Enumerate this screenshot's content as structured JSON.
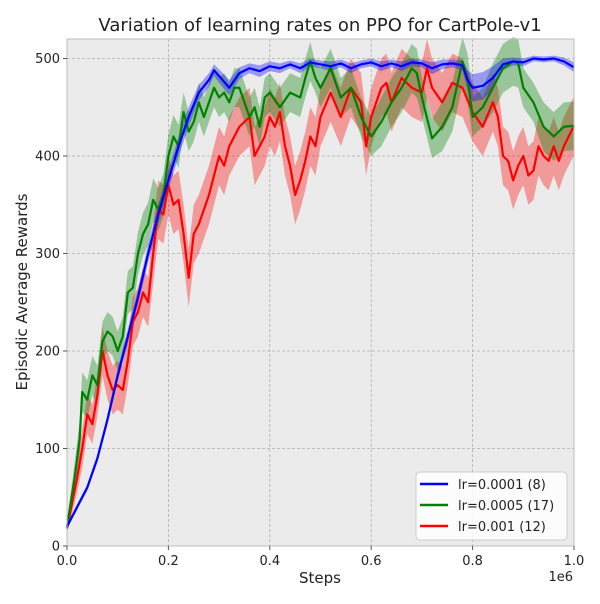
{
  "chart_data": {
    "type": "line",
    "title": "Variation of learning rates on PPO for CartPole-v1",
    "xlabel": "Steps",
    "ylabel": "Episodic Average Rewards",
    "x_offset_label": "1e6",
    "xlim": [
      0,
      1.0
    ],
    "ylim": [
      0,
      520
    ],
    "xticks": [
      0.0,
      0.2,
      0.4,
      0.6,
      0.8,
      1.0
    ],
    "xtick_labels": [
      "0.0",
      "0.2",
      "0.4",
      "0.6",
      "0.8",
      "1.0"
    ],
    "yticks": [
      0,
      100,
      200,
      300,
      400,
      500
    ],
    "ytick_labels": [
      "0",
      "100",
      "200",
      "300",
      "400",
      "500"
    ],
    "grid": true,
    "legend_position": "bottom-right",
    "background": "#ebebeb",
    "series": [
      {
        "name": "lr=0.0001 (8)",
        "color": "#0000ff",
        "band_color": "#0000ff",
        "points": [
          [
            0.0,
            20
          ],
          [
            0.02,
            40
          ],
          [
            0.04,
            60
          ],
          [
            0.06,
            90
          ],
          [
            0.08,
            130
          ],
          [
            0.1,
            175
          ],
          [
            0.12,
            215
          ],
          [
            0.14,
            255
          ],
          [
            0.16,
            300
          ],
          [
            0.18,
            340
          ],
          [
            0.2,
            375
          ],
          [
            0.22,
            410
          ],
          [
            0.24,
            440
          ],
          [
            0.26,
            465
          ],
          [
            0.28,
            478
          ],
          [
            0.29,
            488
          ],
          [
            0.3,
            482
          ],
          [
            0.32,
            470
          ],
          [
            0.34,
            485
          ],
          [
            0.36,
            490
          ],
          [
            0.38,
            487
          ],
          [
            0.4,
            492
          ],
          [
            0.42,
            490
          ],
          [
            0.44,
            494
          ],
          [
            0.46,
            490
          ],
          [
            0.48,
            496
          ],
          [
            0.5,
            494
          ],
          [
            0.52,
            492
          ],
          [
            0.54,
            495
          ],
          [
            0.56,
            490
          ],
          [
            0.58,
            494
          ],
          [
            0.6,
            496
          ],
          [
            0.62,
            492
          ],
          [
            0.64,
            495
          ],
          [
            0.66,
            492
          ],
          [
            0.68,
            496
          ],
          [
            0.7,
            495
          ],
          [
            0.72,
            490
          ],
          [
            0.74,
            494
          ],
          [
            0.76,
            495
          ],
          [
            0.78,
            493
          ],
          [
            0.79,
            478
          ],
          [
            0.8,
            470
          ],
          [
            0.82,
            472
          ],
          [
            0.84,
            480
          ],
          [
            0.86,
            494
          ],
          [
            0.88,
            497
          ],
          [
            0.9,
            496
          ],
          [
            0.92,
            500
          ],
          [
            0.94,
            499
          ],
          [
            0.96,
            500
          ],
          [
            0.98,
            497
          ],
          [
            1.0,
            491
          ]
        ],
        "band": [
          3,
          3,
          3,
          4,
          5,
          6,
          8,
          8,
          9,
          10,
          10,
          10,
          10,
          8,
          7,
          6,
          7,
          8,
          6,
          5,
          6,
          5,
          5,
          4,
          5,
          4,
          4,
          5,
          4,
          5,
          4,
          4,
          5,
          4,
          5,
          4,
          4,
          6,
          5,
          4,
          5,
          10,
          14,
          14,
          12,
          6,
          4,
          4,
          3,
          3,
          3,
          4,
          5
        ]
      },
      {
        "name": "lr=0.0005 (17)",
        "color": "#008000",
        "band_color": "#008000",
        "points": [
          [
            0.0,
            20
          ],
          [
            0.015,
            70
          ],
          [
            0.025,
            110
          ],
          [
            0.03,
            158
          ],
          [
            0.04,
            150
          ],
          [
            0.05,
            175
          ],
          [
            0.06,
            165
          ],
          [
            0.07,
            210
          ],
          [
            0.08,
            220
          ],
          [
            0.09,
            215
          ],
          [
            0.1,
            200
          ],
          [
            0.11,
            215
          ],
          [
            0.12,
            260
          ],
          [
            0.13,
            265
          ],
          [
            0.14,
            300
          ],
          [
            0.15,
            320
          ],
          [
            0.16,
            330
          ],
          [
            0.17,
            355
          ],
          [
            0.18,
            345
          ],
          [
            0.19,
            360
          ],
          [
            0.2,
            400
          ],
          [
            0.21,
            420
          ],
          [
            0.22,
            410
          ],
          [
            0.23,
            445
          ],
          [
            0.24,
            425
          ],
          [
            0.25,
            435
          ],
          [
            0.26,
            455
          ],
          [
            0.27,
            440
          ],
          [
            0.28,
            455
          ],
          [
            0.29,
            470
          ],
          [
            0.3,
            460
          ],
          [
            0.31,
            465
          ],
          [
            0.32,
            455
          ],
          [
            0.33,
            470
          ],
          [
            0.34,
            470
          ],
          [
            0.35,
            455
          ],
          [
            0.36,
            440
          ],
          [
            0.37,
            450
          ],
          [
            0.38,
            430
          ],
          [
            0.39,
            460
          ],
          [
            0.4,
            465
          ],
          [
            0.42,
            450
          ],
          [
            0.44,
            465
          ],
          [
            0.46,
            460
          ],
          [
            0.47,
            480
          ],
          [
            0.48,
            497
          ],
          [
            0.49,
            480
          ],
          [
            0.5,
            470
          ],
          [
            0.52,
            490
          ],
          [
            0.54,
            460
          ],
          [
            0.56,
            470
          ],
          [
            0.58,
            440
          ],
          [
            0.6,
            420
          ],
          [
            0.62,
            435
          ],
          [
            0.64,
            455
          ],
          [
            0.66,
            470
          ],
          [
            0.68,
            490
          ],
          [
            0.69,
            485
          ],
          [
            0.7,
            460
          ],
          [
            0.72,
            418
          ],
          [
            0.74,
            430
          ],
          [
            0.76,
            450
          ],
          [
            0.78,
            497
          ],
          [
            0.79,
            480
          ],
          [
            0.8,
            440
          ],
          [
            0.82,
            450
          ],
          [
            0.84,
            470
          ],
          [
            0.86,
            490
          ],
          [
            0.88,
            497
          ],
          [
            0.89,
            495
          ],
          [
            0.9,
            470
          ],
          [
            0.92,
            455
          ],
          [
            0.94,
            430
          ],
          [
            0.96,
            420
          ],
          [
            0.98,
            430
          ],
          [
            1.0,
            431
          ]
        ],
        "band": [
          5,
          15,
          18,
          20,
          20,
          20,
          20,
          20,
          20,
          20,
          20,
          20,
          22,
          22,
          22,
          22,
          22,
          22,
          22,
          22,
          22,
          22,
          22,
          20,
          20,
          20,
          20,
          20,
          20,
          20,
          20,
          20,
          20,
          20,
          20,
          20,
          20,
          20,
          20,
          20,
          20,
          20,
          20,
          20,
          20,
          20,
          15,
          20,
          20,
          20,
          20,
          20,
          20,
          25,
          25,
          25,
          25,
          25,
          20,
          20,
          25,
          25,
          25,
          25,
          20,
          20,
          25,
          25,
          25,
          25,
          20,
          20,
          25,
          25,
          25,
          25,
          25,
          25
        ]
      },
      {
        "name": "lr=0.001 (12)",
        "color": "#ff0000",
        "band_color": "#ff0000",
        "points": [
          [
            0.0,
            18
          ],
          [
            0.02,
            70
          ],
          [
            0.03,
            100
          ],
          [
            0.04,
            135
          ],
          [
            0.05,
            125
          ],
          [
            0.06,
            155
          ],
          [
            0.07,
            200
          ],
          [
            0.08,
            175
          ],
          [
            0.09,
            160
          ],
          [
            0.1,
            165
          ],
          [
            0.11,
            160
          ],
          [
            0.12,
            190
          ],
          [
            0.13,
            230
          ],
          [
            0.14,
            240
          ],
          [
            0.15,
            260
          ],
          [
            0.16,
            250
          ],
          [
            0.17,
            300
          ],
          [
            0.18,
            345
          ],
          [
            0.19,
            340
          ],
          [
            0.2,
            370
          ],
          [
            0.21,
            350
          ],
          [
            0.22,
            355
          ],
          [
            0.23,
            320
          ],
          [
            0.24,
            275
          ],
          [
            0.25,
            320
          ],
          [
            0.26,
            330
          ],
          [
            0.27,
            345
          ],
          [
            0.28,
            360
          ],
          [
            0.29,
            380
          ],
          [
            0.3,
            400
          ],
          [
            0.31,
            390
          ],
          [
            0.32,
            410
          ],
          [
            0.33,
            420
          ],
          [
            0.34,
            430
          ],
          [
            0.35,
            435
          ],
          [
            0.36,
            440
          ],
          [
            0.37,
            400
          ],
          [
            0.38,
            410
          ],
          [
            0.39,
            420
          ],
          [
            0.4,
            440
          ],
          [
            0.41,
            430
          ],
          [
            0.42,
            445
          ],
          [
            0.43,
            410
          ],
          [
            0.44,
            390
          ],
          [
            0.45,
            360
          ],
          [
            0.46,
            375
          ],
          [
            0.47,
            395
          ],
          [
            0.48,
            420
          ],
          [
            0.49,
            410
          ],
          [
            0.5,
            440
          ],
          [
            0.52,
            465
          ],
          [
            0.54,
            440
          ],
          [
            0.56,
            470
          ],
          [
            0.58,
            455
          ],
          [
            0.59,
            410
          ],
          [
            0.6,
            440
          ],
          [
            0.62,
            470
          ],
          [
            0.63,
            475
          ],
          [
            0.64,
            455
          ],
          [
            0.66,
            480
          ],
          [
            0.68,
            470
          ],
          [
            0.7,
            465
          ],
          [
            0.71,
            490
          ],
          [
            0.72,
            470
          ],
          [
            0.74,
            455
          ],
          [
            0.76,
            475
          ],
          [
            0.78,
            470
          ],
          [
            0.8,
            445
          ],
          [
            0.82,
            430
          ],
          [
            0.84,
            455
          ],
          [
            0.85,
            440
          ],
          [
            0.86,
            400
          ],
          [
            0.87,
            395
          ],
          [
            0.88,
            375
          ],
          [
            0.89,
            390
          ],
          [
            0.9,
            400
          ],
          [
            0.91,
            380
          ],
          [
            0.92,
            385
          ],
          [
            0.93,
            410
          ],
          [
            0.94,
            400
          ],
          [
            0.95,
            395
          ],
          [
            0.96,
            410
          ],
          [
            0.97,
            395
          ],
          [
            0.98,
            410
          ],
          [
            1.0,
            431
          ]
        ],
        "band": [
          5,
          15,
          20,
          20,
          20,
          22,
          25,
          25,
          25,
          25,
          25,
          25,
          25,
          25,
          25,
          25,
          30,
          30,
          30,
          30,
          30,
          30,
          30,
          30,
          30,
          30,
          30,
          30,
          30,
          30,
          30,
          30,
          30,
          30,
          30,
          30,
          30,
          30,
          30,
          30,
          30,
          30,
          30,
          30,
          30,
          30,
          30,
          30,
          30,
          30,
          30,
          30,
          30,
          30,
          30,
          30,
          30,
          30,
          30,
          30,
          30,
          30,
          30,
          30,
          30,
          30,
          30,
          30,
          30,
          30,
          30,
          30,
          30,
          30,
          30,
          30,
          30,
          30,
          30,
          30,
          30,
          30,
          30,
          30,
          30,
          30
        ]
      }
    ]
  }
}
